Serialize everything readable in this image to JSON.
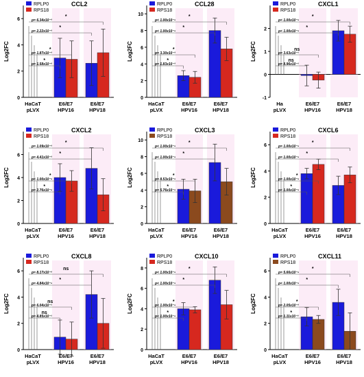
{
  "legend_colors": {
    "RPLP0": "#1a1adb",
    "RPS18": "#d6281f",
    "RPS18_alt": "#8b4a1e",
    "pink_band": "#f7c8e8"
  },
  "chart_data": [
    {
      "type": "bar",
      "title": "CCL2",
      "ylabel": "Log2FC",
      "ylim": [
        0,
        7
      ],
      "yticks": [
        0,
        2,
        4,
        6
      ],
      "categories": [
        [
          "HaCaT",
          "pLVX"
        ],
        [
          "E6/E7",
          "HPV16"
        ],
        [
          "E6/E7",
          "HPV18"
        ]
      ],
      "series": [
        {
          "name": "RPLP0",
          "color": "#1a1adb",
          "values": [
            0,
            3.0,
            2.6
          ],
          "errors": [
            0,
            1.5,
            1.7
          ]
        },
        {
          "name": "RPS18",
          "color": "#d6281f",
          "values": [
            0,
            2.9,
            3.4
          ],
          "errors": [
            0,
            1.4,
            1.8
          ]
        }
      ],
      "pvalues": [
        "p= 1.58x10⁻²",
        "p= 1.87x10⁻³",
        "p= 2.22x10⁻³",
        "p= 6.34x10⁻³"
      ]
    },
    {
      "type": "bar",
      "title": "CCL28",
      "ylabel": "Log2FC",
      "ylim": [
        0,
        11
      ],
      "yticks": [
        0,
        2,
        4,
        6,
        8,
        10
      ],
      "categories": [
        [
          "HaCaT",
          "pLVX"
        ],
        [
          "E6/E7",
          "HPV16"
        ],
        [
          "E6/E7",
          "HPV18"
        ]
      ],
      "series": [
        {
          "name": "RPLP0",
          "color": "#1a1adb",
          "values": [
            0,
            2.6,
            8.0
          ],
          "errors": [
            0,
            0.6,
            1.5
          ]
        },
        {
          "name": "RPS18",
          "color": "#d6281f",
          "values": [
            0,
            2.4,
            5.8
          ],
          "errors": [
            0,
            0.7,
            1.4
          ]
        }
      ],
      "pvalues": [
        "p= 1.83x10⁻³",
        "p= 3.30x10⁻³",
        "p< 1.00x10⁻⁴",
        "p< 1.00x10⁻⁴"
      ]
    },
    {
      "type": "bar",
      "title": "CXCL1",
      "ylabel": "Log2FC",
      "ylim": [
        -1,
        3
      ],
      "yticks": [
        -1,
        0,
        1,
        2
      ],
      "categories": [
        [
          "Ha",
          "pLVX"
        ],
        [
          "E6/E7",
          "HPV16"
        ],
        [
          "E6/E7",
          "HPV18"
        ]
      ],
      "series": [
        {
          "name": "RPLP0",
          "color": "#1a1adb",
          "values": [
            0,
            -0.05,
            1.9
          ],
          "errors": [
            0,
            0.45,
            0.45
          ]
        },
        {
          "name": "RPS18",
          "color": "#d6281f",
          "values": [
            0,
            -0.25,
            1.75
          ],
          "errors": [
            0,
            0.35,
            0.35
          ]
        }
      ],
      "pvalues": [
        "p= 8.96x10⁻¹",
        "p= 3.63x10⁻¹",
        "p< 1.00x10⁻⁴",
        "p< 1.00x10⁻⁴"
      ]
    },
    {
      "type": "bar",
      "title": "CXCL2",
      "ylabel": "Log2FC",
      "ylim": [
        0,
        8
      ],
      "yticks": [
        0,
        2,
        4,
        6
      ],
      "categories": [
        [
          "HaCaT",
          "pLVX"
        ],
        [
          "E6/E7",
          "HPV16"
        ],
        [
          "E6/E7",
          "HPV18"
        ]
      ],
      "series": [
        {
          "name": "RPLP0",
          "color": "#1a1adb",
          "values": [
            0,
            4.0,
            4.8
          ],
          "errors": [
            0,
            1.2,
            1.8
          ]
        },
        {
          "name": "RPS18",
          "color": "#d6281f",
          "values": [
            0,
            3.7,
            2.5
          ],
          "errors": [
            0,
            0.9,
            1.4
          ]
        }
      ],
      "pvalues": [
        "p= 2.76x10⁻⁴",
        "p< 1.00x10⁻⁴",
        "p= 4.41x10⁻³",
        "p= 1.09x10⁻³"
      ]
    },
    {
      "type": "bar",
      "title": "CXCL3",
      "ylabel": "Log2FC",
      "ylim": [
        0,
        11
      ],
      "yticks": [
        0,
        2,
        4,
        6,
        8,
        10
      ],
      "categories": [
        [
          "HaCaT",
          "pLVX"
        ],
        [
          "E6/E7",
          "HPV16"
        ],
        [
          "E6/E7",
          "HPV18"
        ]
      ],
      "series": [
        {
          "name": "RPLP0",
          "color": "#1a1adb",
          "values": [
            0,
            4.1,
            7.3
          ],
          "errors": [
            0,
            1.2,
            2.2
          ]
        },
        {
          "name": "RPS18",
          "color": "#8b4a1e",
          "values": [
            0,
            3.9,
            5.0
          ],
          "errors": [
            0,
            1.4,
            1.6
          ]
        }
      ],
      "pvalues": [
        "p= 5.76x10⁻⁴",
        "p= 8.53x10⁻⁴",
        "p< 1.00x10⁻⁴",
        "p< 1.00x10⁻⁴"
      ]
    },
    {
      "type": "bar",
      "title": "CXCL6",
      "ylabel": "Log2FC",
      "ylim": [
        0,
        7
      ],
      "yticks": [
        0,
        2,
        4,
        6
      ],
      "categories": [
        [
          "HaCaT",
          "pLVX"
        ],
        [
          "E6/E7",
          "HPV16"
        ],
        [
          "E6/E7",
          "HPV18"
        ]
      ],
      "series": [
        {
          "name": "RPLP0",
          "color": "#1a1adb",
          "values": [
            0,
            3.8,
            2.9
          ],
          "errors": [
            0,
            0.4,
            0.7
          ]
        },
        {
          "name": "RPS18",
          "color": "#d6281f",
          "values": [
            0,
            4.5,
            3.7
          ],
          "errors": [
            0,
            0.4,
            0.6
          ]
        }
      ],
      "pvalues": [
        "p< 1.00x10⁻⁴",
        "p= 1.00x10⁻⁴",
        "p= 1.00x10⁻⁴",
        "p= 1.00x10⁻⁴"
      ]
    },
    {
      "type": "bar",
      "title": "CXCL8",
      "ylabel": "Log2FC",
      "ylim": [
        0,
        7
      ],
      "yticks": [
        0,
        2,
        4,
        6
      ],
      "categories": [
        [
          "HaCaT",
          "pLVX"
        ],
        [
          "E6/E7",
          "HPV16"
        ],
        [
          "E6/E7",
          "HPV18"
        ]
      ],
      "series": [
        {
          "name": "RPLP0",
          "color": "#1a1adb",
          "values": [
            0,
            0.95,
            4.2
          ],
          "errors": [
            0,
            1.3,
            1.8
          ]
        },
        {
          "name": "RPS18",
          "color": "#d6281f",
          "values": [
            0,
            0.8,
            2.0
          ],
          "errors": [
            0,
            1.3,
            1.9
          ]
        }
      ],
      "pvalues": [
        "p= 4.85x10⁻¹",
        "p= 6.04x10⁻¹",
        "p= 4.84x10⁻⁴",
        "p= 8.17x10⁻²"
      ]
    },
    {
      "type": "bar",
      "title": "CXCL10",
      "ylabel": "Log2FC",
      "ylim": [
        0,
        9
      ],
      "yticks": [
        0,
        2,
        4,
        6,
        8
      ],
      "categories": [
        [
          "HaCaT",
          "pLVX"
        ],
        [
          "E6/E7",
          "HPV16"
        ],
        [
          "E6/E7",
          "HPV18"
        ]
      ],
      "series": [
        {
          "name": "RPLP0",
          "color": "#1a1adb",
          "values": [
            0,
            4.0,
            6.8
          ],
          "errors": [
            0,
            0.6,
            1.3
          ]
        },
        {
          "name": "RPS18",
          "color": "#d6281f",
          "values": [
            0,
            3.9,
            4.4
          ],
          "errors": [
            0,
            0.3,
            1.4
          ]
        }
      ],
      "pvalues": [
        "p< 1.00x10⁻⁴",
        "p< 1.00x10⁻⁴",
        "p< 1.00x10⁻⁴",
        "p< 1.00x10⁻⁴"
      ]
    },
    {
      "type": "bar",
      "title": "CXCL11",
      "ylabel": "Log2FC",
      "ylim": [
        0,
        7
      ],
      "yticks": [
        0,
        2,
        4,
        6
      ],
      "categories": [
        [
          "HaCaT",
          "pLVX"
        ],
        [
          "E6/E7",
          "HPV16"
        ],
        [
          "E6/E7",
          "HPV18"
        ]
      ],
      "series": [
        {
          "name": "RPLP0",
          "color": "#1a1adb",
          "values": [
            0,
            2.5,
            3.6
          ],
          "errors": [
            0,
            0.7,
            1.0
          ]
        },
        {
          "name": "RPS18",
          "color": "#8b4a1e",
          "values": [
            0,
            2.3,
            1.4
          ],
          "errors": [
            0,
            0.3,
            1.4
          ]
        }
      ],
      "pvalues": [
        "p= 1.11x10⁻³",
        "p= 2.05x10⁻³",
        "p< 1.00x10⁻⁴",
        "p= 5.66x10⁻⁴"
      ]
    }
  ],
  "significance": {
    "star": "*",
    "ns": "ns"
  }
}
